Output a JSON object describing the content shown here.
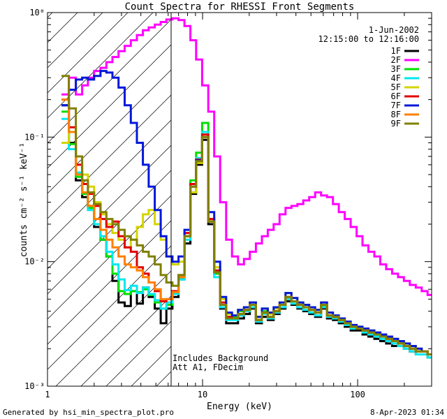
{
  "footer": {
    "generated_by": "Generated by hsi_min_spectra_plot.pro",
    "timestamp": "8-Apr-2023 01:34"
  },
  "legend": {
    "date": "1-Jun-2002",
    "time_range": "12:15:00 to 12:16:00"
  },
  "colors": {
    "1F": "#000000",
    "2F": "#ff00ff",
    "3F": "#00e000",
    "4F": "#00e8f0",
    "5F": "#d4d400",
    "6F": "#e00000",
    "7F": "#0018d8",
    "8F": "#ff8000",
    "9F": "#808000"
  },
  "chart_data": {
    "type": "line",
    "title": "Count Spectra for RHESSI Front Segments",
    "xlabel": "Energy (keV)",
    "ylabel": "counts cm⁻² s⁻¹ keV⁻¹",
    "xscale": "log",
    "yscale": "log",
    "xlim": [
      1,
      300
    ],
    "ylim": [
      0.001,
      1.0
    ],
    "xticks": [
      1,
      10,
      100
    ],
    "xtick_labels": [
      "1",
      "10",
      "100"
    ],
    "yticks": [
      0.001,
      0.01,
      0.1,
      1
    ],
    "ytick_labels": [
      "10⁻³",
      "10⁻²",
      "10⁻¹",
      "10⁰"
    ],
    "shaded_region": {
      "x_range": [
        1,
        6
      ],
      "style": "diagonal hatch",
      "note": [
        "Includes Background",
        "Att A1, FDecim"
      ]
    },
    "legend_position": "top-right",
    "x": [
      1.3,
      1.45,
      1.6,
      1.75,
      1.9,
      2.1,
      2.3,
      2.5,
      2.75,
      3.0,
      3.3,
      3.6,
      3.95,
      4.3,
      4.7,
      5.15,
      5.6,
      6.1,
      6.7,
      7.3,
      8.0,
      8.7,
      9.5,
      10.4,
      11.4,
      12.4,
      13.6,
      14.8,
      16.2,
      17.7,
      19.3,
      21.1,
      23.1,
      25.2,
      27.5,
      30.0,
      32.8,
      35.8,
      39.1,
      42.7,
      46.6,
      50.9,
      55.6,
      60.7,
      66.3,
      72.4,
      79.0,
      86.3,
      94.2,
      102.9,
      112.3,
      122.6,
      133.9,
      146.2,
      159.6,
      174.3,
      190.3,
      207.8,
      226.9,
      247.7,
      270.5,
      295.3
    ],
    "series": [
      {
        "name": "1F",
        "values": [
          0.18,
          0.09,
          0.045,
          0.033,
          0.028,
          0.019,
          0.015,
          0.011,
          0.007,
          0.0047,
          0.0044,
          0.0058,
          0.0046,
          0.0062,
          0.0052,
          0.0042,
          0.0032,
          0.0042,
          0.0052,
          0.0072,
          0.014,
          0.035,
          0.06,
          0.095,
          0.02,
          0.008,
          0.0042,
          0.0032,
          0.0032,
          0.0035,
          0.0038,
          0.0042,
          0.0032,
          0.0036,
          0.0034,
          0.0038,
          0.0042,
          0.0048,
          0.0045,
          0.0042,
          0.004,
          0.0038,
          0.0036,
          0.0042,
          0.0035,
          0.0034,
          0.0032,
          0.003,
          0.0028,
          0.0028,
          0.0026,
          0.0025,
          0.0024,
          0.0023,
          0.0022,
          0.0021,
          0.0021,
          0.002,
          0.0019,
          0.0018,
          0.0018,
          0.0017
        ]
      },
      {
        "name": "2F",
        "values": [
          0.22,
          0.3,
          0.22,
          0.26,
          0.3,
          0.34,
          0.36,
          0.4,
          0.44,
          0.49,
          0.54,
          0.6,
          0.66,
          0.72,
          0.76,
          0.8,
          0.84,
          0.88,
          0.9,
          0.87,
          0.78,
          0.6,
          0.42,
          0.26,
          0.16,
          0.07,
          0.03,
          0.015,
          0.011,
          0.0095,
          0.0105,
          0.012,
          0.014,
          0.016,
          0.018,
          0.02,
          0.024,
          0.027,
          0.028,
          0.029,
          0.031,
          0.033,
          0.036,
          0.034,
          0.033,
          0.029,
          0.025,
          0.022,
          0.019,
          0.016,
          0.0135,
          0.012,
          0.011,
          0.0095,
          0.0087,
          0.008,
          0.0075,
          0.007,
          0.0065,
          0.0062,
          0.0058,
          0.0054
        ]
      },
      {
        "name": "3F",
        "values": [
          0.16,
          0.088,
          0.048,
          0.035,
          0.027,
          0.02,
          0.015,
          0.011,
          0.008,
          0.0058,
          0.0055,
          0.0058,
          0.0057,
          0.006,
          0.0054,
          0.0047,
          0.0042,
          0.0045,
          0.0055,
          0.0075,
          0.016,
          0.045,
          0.075,
          0.13,
          0.022,
          0.008,
          0.0045,
          0.0036,
          0.0036,
          0.004,
          0.0041,
          0.0045,
          0.0034,
          0.004,
          0.0036,
          0.004,
          0.0045,
          0.0052,
          0.0048,
          0.0045,
          0.0043,
          0.0041,
          0.0039,
          0.0044,
          0.0037,
          0.0035,
          0.0034,
          0.0032,
          0.003,
          0.0029,
          0.0028,
          0.0027,
          0.0026,
          0.0025,
          0.0024,
          0.0023,
          0.0022,
          0.0021,
          0.002,
          0.0019,
          0.0019,
          0.0018
        ]
      },
      {
        "name": "4F",
        "values": [
          0.14,
          0.08,
          0.052,
          0.036,
          0.026,
          0.02,
          0.016,
          0.012,
          0.0095,
          0.0072,
          0.0059,
          0.0064,
          0.0056,
          0.0062,
          0.0055,
          0.0049,
          0.0042,
          0.0047,
          0.0055,
          0.0072,
          0.015,
          0.04,
          0.068,
          0.11,
          0.021,
          0.0075,
          0.0043,
          0.0034,
          0.0034,
          0.0037,
          0.004,
          0.0043,
          0.0033,
          0.0038,
          0.0035,
          0.0039,
          0.0043,
          0.005,
          0.0046,
          0.0043,
          0.0041,
          0.0039,
          0.0037,
          0.0043,
          0.0036,
          0.0035,
          0.0033,
          0.0031,
          0.0029,
          0.0029,
          0.0027,
          0.0026,
          0.0025,
          0.0024,
          0.0023,
          0.0022,
          0.0021,
          0.002,
          0.0019,
          0.0018,
          0.0018,
          0.0017
        ]
      },
      {
        "name": "5F",
        "values": [
          0.09,
          0.11,
          0.07,
          0.05,
          0.04,
          0.03,
          0.024,
          0.02,
          0.017,
          0.015,
          0.013,
          0.015,
          0.019,
          0.024,
          0.026,
          0.02,
          0.015,
          0.011,
          0.0095,
          0.01,
          0.016,
          0.036,
          0.062,
          0.1,
          0.022,
          0.009,
          0.005,
          0.0038,
          0.0037,
          0.0041,
          0.0043,
          0.0047,
          0.0036,
          0.0042,
          0.0038,
          0.0042,
          0.0047,
          0.0056,
          0.0051,
          0.0047,
          0.0045,
          0.0043,
          0.0041,
          0.0047,
          0.0039,
          0.0037,
          0.0035,
          0.0033,
          0.0031,
          0.003,
          0.0029,
          0.0028,
          0.0027,
          0.0026,
          0.0025,
          0.0024,
          0.0023,
          0.0022,
          0.0021,
          0.002,
          0.0019,
          0.0018
        ]
      },
      {
        "name": "6F",
        "values": [
          0.2,
          0.12,
          0.06,
          0.042,
          0.035,
          0.028,
          0.022,
          0.019,
          0.021,
          0.016,
          0.013,
          0.012,
          0.009,
          0.008,
          0.0068,
          0.0058,
          0.0048,
          0.005,
          0.0058,
          0.0078,
          0.017,
          0.042,
          0.066,
          0.105,
          0.022,
          0.0085,
          0.0047,
          0.0036,
          0.0035,
          0.0038,
          0.0041,
          0.0045,
          0.0034,
          0.0039,
          0.0036,
          0.004,
          0.0045,
          0.0052,
          0.0048,
          0.0045,
          0.0043,
          0.0041,
          0.0039,
          0.0045,
          0.0037,
          0.0036,
          0.0034,
          0.0032,
          0.003,
          0.0029,
          0.0028,
          0.0027,
          0.0026,
          0.0025,
          0.0024,
          0.0023,
          0.0022,
          0.0021,
          0.002,
          0.0019,
          0.0019,
          0.0018
        ]
      },
      {
        "name": "7F",
        "values": [
          0.18,
          0.24,
          0.29,
          0.3,
          0.29,
          0.31,
          0.34,
          0.33,
          0.3,
          0.25,
          0.18,
          0.13,
          0.09,
          0.06,
          0.04,
          0.026,
          0.016,
          0.011,
          0.01,
          0.011,
          0.018,
          0.04,
          0.065,
          0.1,
          0.025,
          0.01,
          0.0052,
          0.0039,
          0.0037,
          0.0041,
          0.0043,
          0.0047,
          0.0036,
          0.0042,
          0.0039,
          0.0043,
          0.0047,
          0.0056,
          0.0051,
          0.0047,
          0.0045,
          0.0043,
          0.0041,
          0.0047,
          0.0039,
          0.0037,
          0.0035,
          0.0033,
          0.0031,
          0.003,
          0.0029,
          0.0028,
          0.0027,
          0.0026,
          0.0025,
          0.0024,
          0.0023,
          0.0022,
          0.0021,
          0.002,
          0.0019,
          0.0018
        ]
      },
      {
        "name": "8F",
        "values": [
          0.2,
          0.11,
          0.05,
          0.036,
          0.028,
          0.022,
          0.018,
          0.015,
          0.013,
          0.011,
          0.0095,
          0.009,
          0.0085,
          0.0075,
          0.0068,
          0.006,
          0.005,
          0.005,
          0.0057,
          0.0075,
          0.016,
          0.04,
          0.064,
          0.1,
          0.021,
          0.0082,
          0.0045,
          0.0035,
          0.0035,
          0.0038,
          0.0041,
          0.0045,
          0.0034,
          0.0039,
          0.0036,
          0.004,
          0.0045,
          0.0052,
          0.0048,
          0.0045,
          0.0043,
          0.0041,
          0.0039,
          0.0045,
          0.0037,
          0.0036,
          0.0034,
          0.0032,
          0.003,
          0.0029,
          0.0028,
          0.0027,
          0.0026,
          0.0025,
          0.0024,
          0.0023,
          0.0022,
          0.0021,
          0.002,
          0.0019,
          0.0019,
          0.0018
        ]
      },
      {
        "name": "9F",
        "values": [
          0.31,
          0.17,
          0.07,
          0.045,
          0.036,
          0.029,
          0.025,
          0.022,
          0.02,
          0.018,
          0.016,
          0.015,
          0.0135,
          0.012,
          0.011,
          0.0095,
          0.0078,
          0.0068,
          0.0064,
          0.0078,
          0.016,
          0.04,
          0.064,
          0.1,
          0.021,
          0.0082,
          0.0045,
          0.0035,
          0.0035,
          0.0038,
          0.0041,
          0.0045,
          0.0034,
          0.0039,
          0.0036,
          0.004,
          0.0045,
          0.0052,
          0.0048,
          0.0045,
          0.0043,
          0.0041,
          0.0039,
          0.0045,
          0.0037,
          0.0036,
          0.0034,
          0.0032,
          0.003,
          0.0029,
          0.0028,
          0.0027,
          0.0026,
          0.0025,
          0.0024,
          0.0023,
          0.0022,
          0.0021,
          0.002,
          0.0019,
          0.0019,
          0.0018
        ]
      }
    ]
  }
}
